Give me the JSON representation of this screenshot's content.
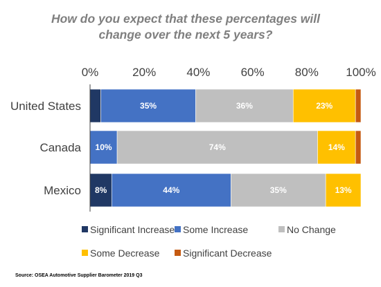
{
  "chart_data": {
    "type": "bar",
    "orientation": "horizontal",
    "stacked": true,
    "title_lines": [
      "How do you expect that these percentages will",
      "change over the next 5 years?"
    ],
    "categories": [
      "United States",
      "Canada",
      "Mexico"
    ],
    "x_ticks": [
      "0%",
      "20%",
      "40%",
      "60%",
      "80%",
      "100%"
    ],
    "xlim": [
      0,
      100
    ],
    "grid": false,
    "legend_position": "bottom",
    "series": [
      {
        "name": "Significant Increase",
        "color": "#203864",
        "values": [
          4,
          0,
          8
        ],
        "labels": [
          "",
          "",
          "8%"
        ]
      },
      {
        "name": "Some Increase",
        "color": "#4472c4",
        "values": [
          35,
          10,
          44
        ],
        "labels": [
          "35%",
          "10%",
          "44%"
        ]
      },
      {
        "name": "No Change",
        "color": "#bfbfbf",
        "values": [
          36,
          74,
          35
        ],
        "labels": [
          "36%",
          "74%",
          "35%"
        ]
      },
      {
        "name": "Some Decrease",
        "color": "#ffc000",
        "values": [
          23,
          14,
          13
        ],
        "labels": [
          "23%",
          "14%",
          "13%"
        ]
      },
      {
        "name": "Significant Decrease",
        "color": "#c55a11",
        "values": [
          2,
          2,
          0
        ],
        "labels": [
          "",
          "",
          ""
        ]
      }
    ]
  },
  "source": "Source: OSEA Automotive Supplier Barometer  2019 Q3"
}
